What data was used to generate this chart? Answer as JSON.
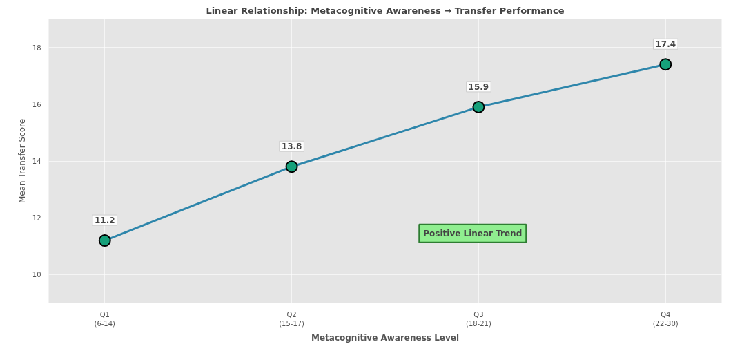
{
  "chart_data": {
    "type": "line",
    "title": "Linear Relationship: Metacognitive Awareness → Transfer Performance",
    "xlabel": "Metacognitive Awareness Level",
    "ylabel": "Mean Transfer Score",
    "categories": [
      "Q1\n(6-14)",
      "Q2\n(15-17)",
      "Q3\n(18-21)",
      "Q4\n(22-30)"
    ],
    "series": [
      {
        "color": "#2e86ab",
        "colors": [
          "#16a07a",
          "#16a07a",
          "#16a07a",
          "#16a07a"
        ],
        "values": [
          11.2,
          13.8,
          15.9,
          17.4
        ]
      }
    ],
    "marker": "circle",
    "line_style": "solid",
    "data_labels": true,
    "ylim": [
      9,
      19
    ],
    "yticks": [
      10,
      12,
      14,
      16,
      18
    ],
    "grid": true,
    "annotations": [
      "Positive Linear Trend"
    ]
  }
}
